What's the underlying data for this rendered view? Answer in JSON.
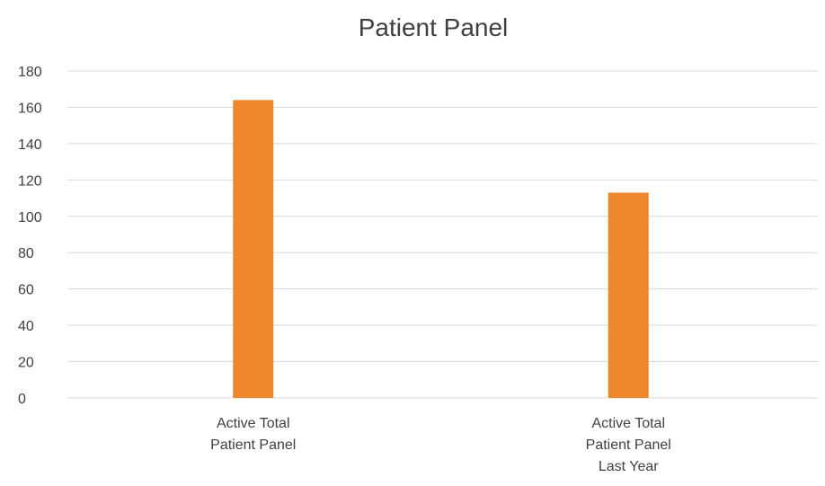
{
  "chart_data": {
    "type": "bar",
    "title": "Patient Panel",
    "categories": [
      [
        "Active Total",
        "Patient Panel"
      ],
      [
        "Active Total",
        "Patient Panel",
        "Last Year"
      ]
    ],
    "values": [
      164,
      113
    ],
    "ylim": [
      0,
      180
    ],
    "yticks": [
      0,
      20,
      40,
      60,
      80,
      100,
      120,
      140,
      160,
      180
    ],
    "grid": true,
    "bar_color": "#ED872D",
    "gridline_color": "#D9D9D9",
    "text_color": "#404040"
  }
}
